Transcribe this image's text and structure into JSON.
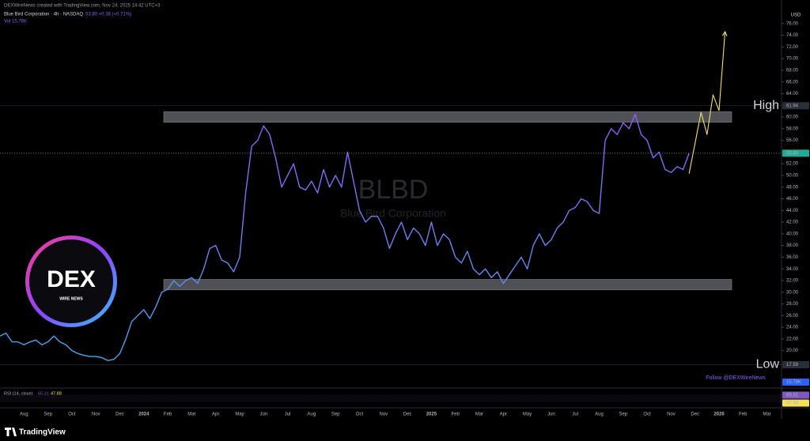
{
  "header": {
    "byline": "DEXWireNews created with TradingView.com, Nov 24, 2025 14:42 UTC+3",
    "symbol": "Blue Bird Corporation · 4h · NASDAQ",
    "quote": "53.80 +0.38 (+0.71%)",
    "volume": "Vol 15.78K"
  },
  "chart_data": {
    "type": "line",
    "watermark_subtitle": "Blue Bird Corporation",
    "currency": "USD",
    "categories": [
      null,
      null,
      null,
      null,
      "Aug",
      null,
      null,
      null,
      "Sep",
      null,
      null,
      null,
      "Oct",
      null,
      null,
      null,
      "Nov",
      null,
      null,
      null,
      "Dec",
      null,
      null,
      null,
      "2024",
      null,
      null,
      null,
      "Feb",
      null,
      null,
      null,
      "Mar",
      null,
      null,
      null,
      "Apr",
      null,
      null,
      null,
      "May",
      null,
      null,
      null,
      "Jun",
      null,
      null,
      null,
      "Jul",
      null,
      null,
      null,
      "Aug",
      null,
      null,
      null,
      "Sep",
      null,
      null,
      null,
      "Oct",
      null,
      null,
      null,
      "Nov",
      null,
      null,
      null,
      "Dec",
      null,
      null,
      null,
      "2025",
      null,
      null,
      null,
      "Feb",
      null,
      null,
      null,
      "Mar",
      null,
      null,
      null,
      "Apr",
      null,
      null,
      null,
      "May",
      null,
      null,
      null,
      "Jun",
      null,
      null,
      null,
      "Jul",
      null,
      null,
      null,
      "Aug",
      null,
      null,
      null,
      "Sep",
      null,
      null,
      null,
      "Oct",
      null,
      null,
      null,
      "Nov",
      null,
      null,
      null,
      "Dec",
      null,
      null,
      null,
      "2026",
      null,
      null,
      null,
      "Feb",
      null,
      null,
      null,
      "Mar",
      null
    ],
    "series": [
      {
        "name": "BLBD",
        "color": "#8e5cf7",
        "gradient_to": "#3fa9f0",
        "values": [
          22.5,
          23,
          21.5,
          21.5,
          21,
          21.5,
          21.8,
          21,
          21.5,
          22.5,
          21.5,
          21,
          20,
          19.5,
          19.2,
          19,
          19,
          18.8,
          18.3,
          18.5,
          19.5,
          22,
          25,
          26,
          27,
          25.5,
          27.5,
          30,
          30.5,
          32,
          31,
          32,
          32.5,
          31.5,
          34,
          37.5,
          38,
          35.5,
          35,
          33.5,
          36,
          47,
          55,
          56,
          58.5,
          57,
          53,
          48,
          50,
          52,
          48,
          47.5,
          49,
          47,
          51,
          48,
          50,
          48,
          54,
          49,
          44,
          42,
          43,
          43,
          41,
          37.5,
          40,
          42,
          39,
          41,
          40,
          38,
          42,
          38,
          40,
          39,
          36,
          35,
          37,
          34,
          33,
          34,
          32.5,
          33.5,
          31.5,
          33,
          34.5,
          36,
          34,
          38,
          40,
          38,
          39,
          41,
          42,
          44,
          44.5,
          46,
          45.5,
          44,
          43.5,
          56,
          58,
          57,
          59,
          58,
          60.5,
          57,
          56,
          53,
          54,
          51,
          50.5,
          51.5,
          51,
          53.8,
          null,
          null,
          null,
          null,
          null,
          null,
          null,
          null,
          null,
          null,
          null,
          null,
          null,
          null
        ]
      },
      {
        "color": "#f5e05a",
        "values": [
          null,
          null,
          null,
          null,
          null,
          null,
          null,
          null,
          null,
          null,
          null,
          null,
          null,
          null,
          null,
          null,
          null,
          null,
          null,
          null,
          null,
          null,
          null,
          null,
          null,
          null,
          null,
          null,
          null,
          null,
          null,
          null,
          null,
          null,
          null,
          null,
          null,
          null,
          null,
          null,
          null,
          null,
          null,
          null,
          null,
          null,
          null,
          null,
          null,
          null,
          null,
          null,
          null,
          null,
          null,
          null,
          null,
          null,
          null,
          null,
          null,
          null,
          null,
          null,
          null,
          null,
          null,
          null,
          null,
          null,
          null,
          null,
          null,
          null,
          null,
          null,
          null,
          null,
          null,
          null,
          null,
          null,
          null,
          null,
          null,
          null,
          null,
          null,
          null,
          null,
          null,
          null,
          null,
          null,
          null,
          null,
          null,
          null,
          null,
          null,
          null,
          null,
          null,
          null,
          null,
          null,
          null,
          null,
          null,
          null,
          null,
          null,
          null,
          null,
          null,
          50.3,
          55.5,
          60.8,
          57,
          63.8,
          61.1,
          74.6,
          null,
          null,
          null,
          null,
          null,
          null,
          null,
          null
        ]
      }
    ],
    "ylim": [
      14,
      78
    ],
    "yticks": [
      {
        "value": 76,
        "label": "76.00"
      },
      {
        "value": 74,
        "label": "74.00"
      },
      {
        "value": 72,
        "label": "72.00"
      },
      {
        "value": 70,
        "label": "70.00"
      },
      {
        "value": 68,
        "label": "68.00"
      },
      {
        "value": 66,
        "label": "66.00"
      },
      {
        "value": 64,
        "label": "64.00"
      },
      {
        "value": 60,
        "label": "60.00"
      },
      {
        "value": 58,
        "label": "58.00"
      },
      {
        "value": 56,
        "label": "56.00"
      },
      {
        "value": 52,
        "label": "52.00"
      },
      {
        "value": 50,
        "label": "50.00"
      },
      {
        "value": 48,
        "label": "48.00"
      },
      {
        "value": 46,
        "label": "46.00"
      },
      {
        "value": 44,
        "label": "44.00"
      },
      {
        "value": 42,
        "label": "42.00"
      },
      {
        "value": 40,
        "label": "40.00"
      },
      {
        "value": 38,
        "label": "38.00"
      },
      {
        "value": 36,
        "label": "36.00"
      },
      {
        "value": 34,
        "label": "34.00"
      },
      {
        "value": 32,
        "label": "32.00"
      },
      {
        "value": 30,
        "label": "30.00"
      },
      {
        "value": 28,
        "label": "28.00"
      },
      {
        "value": 26,
        "label": "26.00"
      },
      {
        "value": 24,
        "label": "24.00"
      },
      {
        "value": 22,
        "label": "22.00"
      },
      {
        "value": 20,
        "label": "20.00"
      }
    ],
    "zones": [
      {
        "range": [
          59.1,
          60.9
        ]
      },
      {
        "range": [
          30.4,
          32.2
        ]
      }
    ],
    "badges": [
      {
        "name": "High",
        "value": 61.94,
        "label": "61.94",
        "color": "#2a2e39"
      },
      {
        "value": 53.8,
        "label": "53.80",
        "color": "#22ab94"
      },
      {
        "name": "Low",
        "value": 17.59,
        "label": "17.59",
        "color": "#2a2e39"
      }
    ],
    "volume_badge": {
      "label": "15.78K",
      "color": "#2962ff"
    },
    "rsi": {
      "label": "RSI (14, close)",
      "values": [
        65.31,
        47.88
      ],
      "colors": [
        "#7e57c2",
        "#f5e05a"
      ]
    },
    "follow": "Follow @DEXWireNews",
    "logo": {
      "title": "DEX",
      "subtitle": "WIRE NEWS"
    }
  },
  "footer": {
    "brand": "TradingView"
  }
}
